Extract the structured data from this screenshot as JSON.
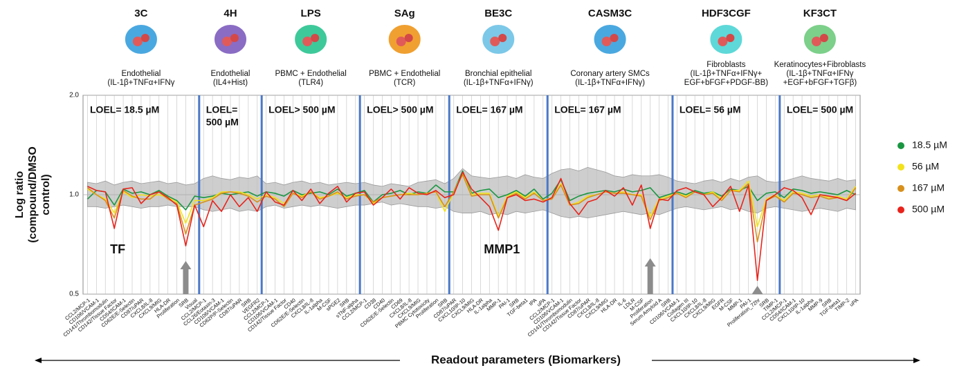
{
  "chart_data": {
    "type": "line",
    "log_y": true,
    "y_label": [
      "Log ratio",
      "(compound/DMSO",
      "control)"
    ],
    "x_label": "Readout parameters (Biomarkers)",
    "ylim": [
      0.5,
      2.0
    ],
    "yticks": [
      {
        "value": 0.5,
        "label": "0.5"
      },
      {
        "value": 1,
        "label": "1.0"
      },
      {
        "value": 2,
        "label": "2.0"
      }
    ],
    "grid": true,
    "legend": "right",
    "annotations": [
      "TF",
      "MMP1"
    ],
    "panels": [
      {
        "name": "3C",
        "icon_color": "#4aa8e0",
        "description": [
          "Endothelial",
          "(IL-1β+TNFα+IFNγ"
        ],
        "loel": [
          "LOEL= 18.5 µM"
        ],
        "categories": [
          "CCL2/MCP-1",
          "CD106/VCAM-1",
          "CD141/Thrombomodulin",
          "CD142/Tissue Factor",
          "CD54/ICAM-1",
          "CD62E/E-Selectin",
          "CD87/uPAR",
          "CXCL8/IL-8",
          "CXCL9/MIG",
          "HLA-DR",
          "Proliferation",
          "SRB",
          "Visual"
        ]
      },
      {
        "name": "4H",
        "icon_color": "#8a6cc4",
        "description": [
          "Endothelial",
          "(IL4+Hist)"
        ],
        "loel": [
          "LOEL=",
          "500 µM"
        ],
        "categories": [
          "CCL2/MCP-1",
          "CCL26/Eotaxin-3",
          "CD106/VCAM-1",
          "CD62P/P-Selectin",
          "CD87/uPAR",
          "SRB",
          "VEGFR2"
        ]
      },
      {
        "name": "LPS",
        "icon_color": "#3ec99a",
        "description": [
          "PBMC + Endothelial",
          "(TLR4)"
        ],
        "loel": [
          "LOEL> 500 µM"
        ],
        "categories": [
          "CCL2/MCP-1",
          "CD106/VCAM-1",
          "CD142/Tissue Factor",
          "CD40",
          "CD62E/E-Selectin",
          "CXCL8/IL-8",
          "IL-1alpha",
          "M-CSF",
          "sPGE2",
          "SRB",
          "sTNF-alpha"
        ]
      },
      {
        "name": "SAg",
        "icon_color": "#f0a030",
        "description": [
          "PBMC + Endothelial",
          "(TCR)"
        ],
        "loel": [
          "LOEL> 500 µM"
        ],
        "categories": [
          "CCL2/MCP-1",
          "CD38",
          "CD40",
          "CD62E/E-Selectin",
          "CD69",
          "CXCL8/IL-8",
          "CXCL9/MIG",
          "PBMC Cytotoxicity",
          "Proliferation",
          "SRB"
        ]
      },
      {
        "name": "BE3C",
        "icon_color": "#7cc8e8",
        "description": [
          "Bronchial epithelial",
          "(IL-1β+TNFα+IFNγ)"
        ],
        "loel": [
          "LOEL= 167 µM"
        ],
        "categories": [
          "CD87/uPAR",
          "CXCL10/IP-10",
          "CXCL9/MIG",
          "HLA-DR",
          "IL-1alpha",
          "MMP-1",
          "PAI-1",
          "SRB",
          "TGF-beta1",
          "tPA",
          "uPA"
        ]
      },
      {
        "name": "CASM3C",
        "icon_color": "#4aa8e0",
        "description": [
          "Coronary artery SMCs",
          "(IL-1β+TNFα+IFNγ)"
        ],
        "loel": [
          "LOEL= 167 µM"
        ],
        "categories": [
          "CCL2/MCP-1",
          "CD106/VCAM-1",
          "CD141/Thrombomodulin",
          "CD142/Tissue Factor",
          "CD87/uPAR",
          "CXCL8/IL-8",
          "CXCL9/MIG",
          "HLA-DR",
          "IL-6",
          "LDLR",
          "M-CSF",
          "Proliferation",
          "Serum Amyloid A",
          "SRB"
        ]
      },
      {
        "name": "HDF3CGF",
        "icon_color": "#5ed8d8",
        "description": [
          "Fibroblasts",
          "(IL-1β+TNFα+IFNγ+",
          "EGF+bFGF+PDGF-BB)"
        ],
        "loel": [
          "LOEL= 56 µM"
        ],
        "categories": [
          "CD106/VCAM-1",
          "Collagen III",
          "CXCL10/IP-10",
          "CXCL8/IL-8",
          "CXCL9/MIG",
          "EGFR",
          "M-CSF",
          "MMP-1",
          "PAI-1",
          "Proliferation_72hr",
          "SRB",
          "TIMP-1"
        ]
      },
      {
        "name": "KF3CT",
        "icon_color": "#7cd08a",
        "description": [
          "Keratinocytes+Fibroblasts",
          "(IL-1β+TNFα+IFNγ",
          "+EGF+bFGF+TGFβ)"
        ],
        "loel": [
          "LOEL= 500 µM"
        ],
        "categories": [
          "CCL2/MCP-1",
          "CD54/ICAM-1",
          "CXCL10/IP-10",
          "IL-1alpha",
          "MMP-9",
          "SRB",
          "TGF-beta1",
          "TIMP-2",
          "uPA"
        ]
      }
    ],
    "band": {
      "color": "#bdbdbd",
      "upper": [
        1.09,
        1.08,
        1.1,
        1.07,
        1.09,
        1.1,
        1.08,
        1.09,
        1.1,
        1.08,
        1.09,
        1.07,
        1.08,
        1.12,
        1.14,
        1.12,
        1.11,
        1.13,
        1.12,
        1.14,
        1.08,
        1.09,
        1.07,
        1.09,
        1.1,
        1.08,
        1.09,
        1.07,
        1.08,
        1.09,
        1.08,
        1.09,
        1.07,
        1.06,
        1.08,
        1.07,
        1.06,
        1.09,
        1.1,
        1.11,
        1.08,
        1.12,
        1.2,
        1.14,
        1.13,
        1.12,
        1.13,
        1.14,
        1.12,
        1.15,
        1.13,
        1.12,
        1.16,
        1.19,
        1.2,
        1.18,
        1.21,
        1.19,
        1.17,
        1.14,
        1.13,
        1.15,
        1.14,
        1.14,
        1.15,
        1.13,
        1.1,
        1.09,
        1.08,
        1.1,
        1.11,
        1.09,
        1.12,
        1.1,
        1.13,
        1.14,
        1.1,
        1.09,
        1.1,
        1.12,
        1.14,
        1.12,
        1.11,
        1.1,
        1.12,
        1.1,
        1.11
      ],
      "lower": [
        0.92,
        0.92,
        0.91,
        0.92,
        0.93,
        0.92,
        0.91,
        0.92,
        0.92,
        0.93,
        0.92,
        0.92,
        0.92,
        0.9,
        0.89,
        0.9,
        0.91,
        0.89,
        0.9,
        0.89,
        0.92,
        0.93,
        0.91,
        0.92,
        0.93,
        0.92,
        0.93,
        0.92,
        0.91,
        0.92,
        0.93,
        0.93,
        0.94,
        0.95,
        0.93,
        0.94,
        0.93,
        0.92,
        0.92,
        0.91,
        0.92,
        0.89,
        0.88,
        0.88,
        0.89,
        0.87,
        0.88,
        0.87,
        0.89,
        0.88,
        0.89,
        0.9,
        0.88,
        0.86,
        0.85,
        0.86,
        0.85,
        0.86,
        0.87,
        0.88,
        0.89,
        0.88,
        0.87,
        0.88,
        0.87,
        0.89,
        0.91,
        0.92,
        0.91,
        0.9,
        0.91,
        0.92,
        0.9,
        0.91,
        0.89,
        0.88,
        0.91,
        0.92,
        0.91,
        0.9,
        0.89,
        0.9,
        0.91,
        0.9,
        0.89,
        0.91,
        0.9
      ]
    },
    "series": [
      {
        "name": "18.5 µM",
        "color": "#1a9641",
        "values": [
          0.97,
          1.03,
          1.02,
          0.93,
          1.04,
          1.01,
          1.02,
          1.0,
          1.03,
          0.99,
          0.96,
          0.9,
          0.99,
          0.98,
          0.99,
          1.01,
          1.0,
          1.01,
          1.02,
          0.99,
          1.02,
          1.01,
          0.99,
          1.03,
          1.0,
          1.01,
          1.02,
          1.0,
          1.04,
          0.99,
          1.01,
          1.03,
          0.95,
          1.0,
          1.01,
          1.03,
          1.0,
          1.02,
          1.01,
          1.07,
          1.02,
          1.02,
          1.18,
          1.01,
          1.03,
          1.04,
          0.98,
          1.0,
          1.03,
          0.99,
          1.04,
          0.97,
          1.01,
          1.11,
          0.96,
          0.99,
          1.01,
          1.02,
          1.03,
          1.02,
          1.04,
          1.02,
          1.03,
          1.05,
          0.98,
          1.0,
          1.02,
          1.0,
          1.03,
          1.01,
          1.02,
          0.99,
          1.04,
          1.03,
          1.06,
          0.96,
          1.01,
          1.02,
          0.98,
          1.04,
          1.03,
          1.01,
          1.02,
          1.01,
          1.0,
          1.03,
          1.0
        ]
      },
      {
        "name": "56 µM",
        "color": "#f2e21c",
        "values": [
          1.04,
          1.0,
          0.97,
          0.88,
          1.02,
          0.98,
          1.0,
          0.99,
          1.0,
          0.98,
          0.95,
          0.82,
          0.96,
          0.96,
          0.98,
          1.02,
          1.02,
          1.02,
          1.0,
          0.97,
          1.0,
          0.98,
          0.94,
          1.01,
          0.99,
          1.02,
          0.98,
          0.99,
          1.01,
          0.98,
          1.0,
          1.0,
          0.94,
          0.98,
          0.99,
          1.0,
          1.01,
          1.0,
          1.01,
          1.02,
          0.89,
          1.02,
          1.16,
          1.0,
          1.01,
          1.01,
          0.86,
          0.99,
          1.02,
          0.98,
          1.02,
          0.96,
          0.98,
          1.08,
          0.93,
          0.95,
          0.99,
          1.0,
          1.02,
          1.01,
          1.02,
          1.0,
          1.0,
          0.86,
          0.97,
          0.99,
          1.01,
          0.99,
          1.02,
          1.0,
          1.02,
          0.97,
          1.03,
          1.03,
          1.1,
          0.8,
          0.97,
          1.0,
          0.96,
          1.02,
          1.01,
          0.99,
          1.0,
          0.98,
          0.99,
          0.97,
          1.06
        ]
      },
      {
        "name": "167 µM",
        "color": "#d8901c",
        "values": [
          1.05,
          1.0,
          0.96,
          0.85,
          1.03,
          0.99,
          0.97,
          0.97,
          1.02,
          0.97,
          0.94,
          0.76,
          0.93,
          0.95,
          0.97,
          1.01,
          1.02,
          1.01,
          0.99,
          0.95,
          0.99,
          0.97,
          0.92,
          1.01,
          0.98,
          1.02,
          0.97,
          0.99,
          1.02,
          0.97,
          0.99,
          1.0,
          0.95,
          0.98,
          0.99,
          1.0,
          1.0,
          1.0,
          1.01,
          1.02,
          0.92,
          1.02,
          1.15,
          0.99,
          1.0,
          1.0,
          0.85,
          0.98,
          1.01,
          0.97,
          1.01,
          0.96,
          0.97,
          1.07,
          0.93,
          0.94,
          0.98,
          1.0,
          1.02,
          1.01,
          1.01,
          1.0,
          0.99,
          0.84,
          0.96,
          0.98,
          1.01,
          0.98,
          1.02,
          1.0,
          1.01,
          0.96,
          1.03,
          1.02,
          1.08,
          0.72,
          0.96,
          0.99,
          0.95,
          1.01,
          1.0,
          0.98,
          0.99,
          0.97,
          0.98,
          0.96,
          1.05
        ]
      },
      {
        "name": "500 µM",
        "color": "#e8231b",
        "values": [
          1.06,
          1.03,
          1.02,
          0.79,
          1.04,
          1.05,
          0.94,
          1.0,
          1.02,
          0.98,
          0.93,
          0.7,
          0.93,
          0.8,
          0.96,
          0.89,
          1.0,
          0.92,
          0.98,
          0.89,
          1.02,
          0.95,
          0.93,
          1.03,
          0.96,
          1.04,
          0.94,
          1.01,
          1.06,
          0.95,
          1.01,
          1.02,
          0.93,
          0.98,
          1.04,
          0.97,
          1.05,
          1.01,
          1.0,
          1.03,
          0.98,
          1.0,
          1.17,
          1.04,
          0.98,
          0.92,
          0.78,
          0.98,
          1.0,
          0.96,
          0.97,
          0.95,
          0.98,
          1.12,
          0.94,
          0.87,
          0.95,
          0.97,
          1.03,
          0.99,
          1.05,
          0.93,
          1.07,
          0.79,
          0.97,
          0.96,
          1.03,
          1.05,
          1.02,
          1.0,
          0.92,
          0.98,
          1.06,
          0.89,
          1.07,
          0.55,
          0.96,
          1.0,
          1.05,
          1.03,
          0.98,
          0.87,
          1.0,
          0.99,
          0.98,
          0.96,
          1.01
        ]
      }
    ]
  }
}
